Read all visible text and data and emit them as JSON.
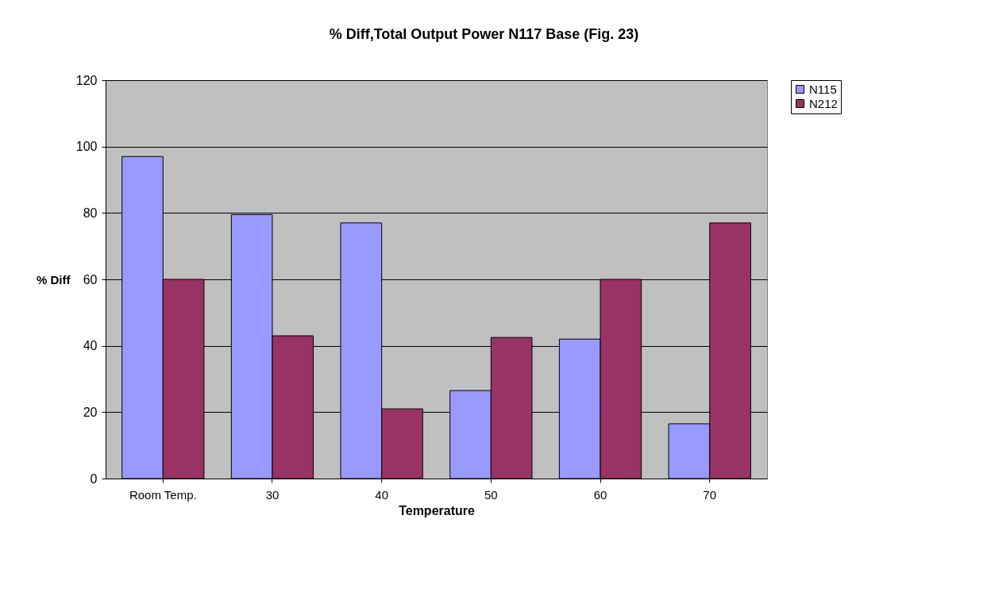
{
  "chart_data": {
    "type": "bar",
    "title": "% Diff,Total Output Power N117 Base (Fig. 23)",
    "xlabel": "Temperature",
    "ylabel": "% Diff",
    "categories": [
      "Room Temp.",
      "30",
      "40",
      "50",
      "60",
      "70"
    ],
    "series": [
      {
        "name": "N115",
        "color": "#9999ff",
        "values": [
          97,
          79.5,
          77,
          26.5,
          42,
          16.5
        ]
      },
      {
        "name": "N212",
        "color": "#993366",
        "values": [
          60,
          43,
          21,
          42.5,
          60,
          77
        ]
      }
    ],
    "ylim": [
      0,
      120
    ],
    "yticks": [
      0,
      20,
      40,
      60,
      80,
      100,
      120
    ],
    "grid": "y",
    "legend": "right"
  }
}
